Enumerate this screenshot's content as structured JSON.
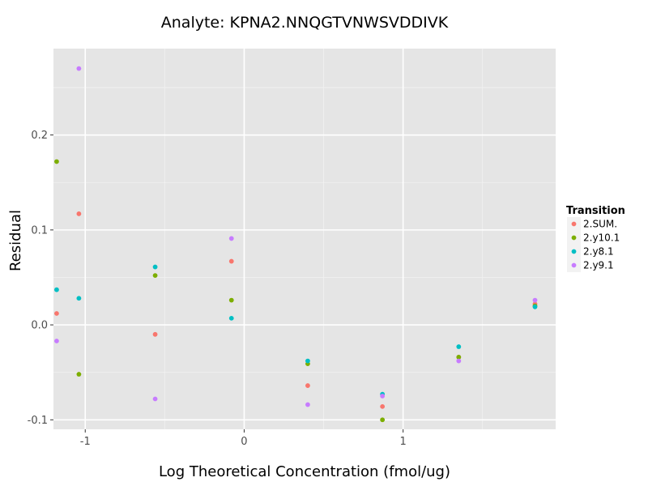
{
  "chart_data": {
    "type": "scatter",
    "title": "Analyte: KPNA2.NNQGTVNWSVDDIVK",
    "xlabel": "Log Theoretical Concentration (fmol/ug)",
    "ylabel": "Residual",
    "xlim": [
      -1.2,
      1.96
    ],
    "ylim": [
      -0.11,
      0.291
    ],
    "x_ticks": [
      -1,
      0,
      1
    ],
    "x_tick_labels": [
      "-1",
      "0",
      "1"
    ],
    "y_ticks": [
      -0.1,
      0.0,
      0.1,
      0.2
    ],
    "y_tick_labels": [
      "-0.1",
      "0.0",
      "0.1",
      "0.2"
    ],
    "grid": true,
    "legend": {
      "title": "Transition",
      "position": "right"
    },
    "series": [
      {
        "name": "2.SUM.",
        "color": "#F8766D",
        "points": [
          {
            "x": -1.18,
            "y": 0.012
          },
          {
            "x": -1.04,
            "y": 0.117
          },
          {
            "x": -0.56,
            "y": -0.01
          },
          {
            "x": -0.08,
            "y": 0.067
          },
          {
            "x": 0.4,
            "y": -0.064
          },
          {
            "x": 0.87,
            "y": -0.086
          },
          {
            "x": 1.35,
            "y": -0.034
          },
          {
            "x": 1.83,
            "y": 0.022
          }
        ]
      },
      {
        "name": "2.y10.1",
        "color": "#7CAE00",
        "points": [
          {
            "x": -1.18,
            "y": 0.172
          },
          {
            "x": -1.04,
            "y": -0.052
          },
          {
            "x": -0.56,
            "y": 0.052
          },
          {
            "x": -0.08,
            "y": 0.026
          },
          {
            "x": 0.4,
            "y": -0.041
          },
          {
            "x": 0.87,
            "y": -0.1
          },
          {
            "x": 1.35,
            "y": -0.034
          },
          {
            "x": 1.83,
            "y": 0.02
          }
        ]
      },
      {
        "name": "2.y8.1",
        "color": "#00BFC4",
        "points": [
          {
            "x": -1.18,
            "y": 0.037
          },
          {
            "x": -1.04,
            "y": 0.028
          },
          {
            "x": -0.56,
            "y": 0.061
          },
          {
            "x": -0.08,
            "y": 0.007
          },
          {
            "x": 0.4,
            "y": -0.038
          },
          {
            "x": 0.87,
            "y": -0.073
          },
          {
            "x": 1.35,
            "y": -0.023
          },
          {
            "x": 1.83,
            "y": 0.019
          }
        ]
      },
      {
        "name": "2.y9.1",
        "color": "#C77CFF",
        "points": [
          {
            "x": -1.18,
            "y": -0.017
          },
          {
            "x": -1.04,
            "y": 0.27
          },
          {
            "x": -0.56,
            "y": -0.078
          },
          {
            "x": -0.08,
            "y": 0.091
          },
          {
            "x": 0.4,
            "y": -0.084
          },
          {
            "x": 0.87,
            "y": -0.075
          },
          {
            "x": 1.35,
            "y": -0.038
          },
          {
            "x": 1.83,
            "y": 0.026
          }
        ]
      }
    ]
  }
}
